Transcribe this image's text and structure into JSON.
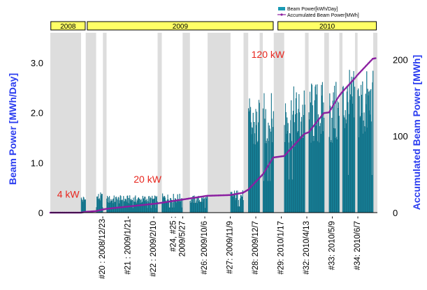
{
  "chart_data": {
    "type": "bar",
    "ylabel": "Beam Power [MWh/Day]",
    "y2label": "Accumulated Beam Power [MWh]",
    "ylim": [
      0,
      3.6
    ],
    "y2lim": [
      0,
      235
    ],
    "yticks": [
      "0",
      "1.0",
      "2.0",
      "3.0"
    ],
    "y2ticks": [
      "0",
      "100",
      "200"
    ],
    "xlim": [
      "2008-10-25",
      "2010-07-15"
    ],
    "years": [
      {
        "label": "2008",
        "start": "2008-10-26",
        "end": "2008-12-31"
      },
      {
        "label": "2009",
        "start": "2009-01-04",
        "end": "2009-12-27"
      },
      {
        "label": "2010",
        "start": "2010-01-05",
        "end": "2010-07-13"
      }
    ],
    "legend": [
      {
        "name": "Beam Power[kWh/Day]",
        "color": "#1a9ab4"
      },
      {
        "name": "Accumulated Beam Power[MWh]",
        "color": "#8b1fa0"
      }
    ],
    "annotations": [
      {
        "text": "4 kW",
        "x": "2008-11-07",
        "y": 0.3
      },
      {
        "text": "20 kW",
        "x": "2009-04-03",
        "y": 0.6
      },
      {
        "text": "120 kW",
        "x": "2009-11-15",
        "y": 3.1
      }
    ],
    "runs": [
      {
        "label": "#20 : 2008/12/23-"
      },
      {
        "label": "#21 : 2009/1/21-"
      },
      {
        "label": "#22 : 2009/2/10 -"
      },
      {
        "label": "#24, #25 :",
        "label2": "2009/5/27 -"
      },
      {
        "label": "#26: 2009/10/6 -"
      },
      {
        "label": "#27: 2009/11/9 -"
      },
      {
        "label": "#28: 2009/12/7 -"
      },
      {
        "label": "#29: 2010/1/17 -"
      },
      {
        "label": "#32: 2010/4/13 -"
      },
      {
        "label": "#33: 2010/5/9 -"
      },
      {
        "label": "#34: 2010/6/7 -"
      }
    ],
    "segments": [
      {
        "start": "2008-12-23",
        "end": "2008-12-31",
        "level": 0.3
      },
      {
        "start": "2009-01-21",
        "end": "2009-02-02",
        "level": 0.35
      },
      {
        "start": "2009-02-10",
        "end": "2009-05-18",
        "level": 0.3
      },
      {
        "start": "2009-05-27",
        "end": "2009-07-05",
        "level": 0.33
      },
      {
        "start": "2009-07-20",
        "end": "2009-08-22",
        "level": 0.3
      },
      {
        "start": "2009-10-06",
        "end": "2009-10-30",
        "level": 0.4
      },
      {
        "start": "2009-11-09",
        "end": "2009-11-30",
        "level": 2.0
      },
      {
        "start": "2009-12-07",
        "end": "2009-12-27",
        "level": 2.1
      },
      {
        "start": "2010-01-17",
        "end": "2010-02-25",
        "level": 2.2
      },
      {
        "start": "2010-03-05",
        "end": "2010-04-03",
        "level": 2.3
      },
      {
        "start": "2010-04-13",
        "end": "2010-05-02",
        "level": 2.3
      },
      {
        "start": "2010-05-09",
        "end": "2010-06-01",
        "level": 2.5
      },
      {
        "start": "2010-06-07",
        "end": "2010-07-06",
        "level": 2.5
      }
    ],
    "accumulated": [
      {
        "date": "2008-10-25",
        "value": 0
      },
      {
        "date": "2008-12-23",
        "value": 0
      },
      {
        "date": "2008-12-31",
        "value": 1
      },
      {
        "date": "2009-01-21",
        "value": 2
      },
      {
        "date": "2009-02-02",
        "value": 4
      },
      {
        "date": "2009-02-10",
        "value": 5
      },
      {
        "date": "2009-05-18",
        "value": 12
      },
      {
        "date": "2009-07-05",
        "value": 17
      },
      {
        "date": "2009-08-22",
        "value": 22
      },
      {
        "date": "2009-10-06",
        "value": 23
      },
      {
        "date": "2009-10-30",
        "value": 26
      },
      {
        "date": "2009-11-09",
        "value": 30
      },
      {
        "date": "2009-11-30",
        "value": 45
      },
      {
        "date": "2009-12-07",
        "value": 50
      },
      {
        "date": "2009-12-27",
        "value": 72
      },
      {
        "date": "2010-01-17",
        "value": 74
      },
      {
        "date": "2010-02-25",
        "value": 103
      },
      {
        "date": "2010-03-05",
        "value": 105
      },
      {
        "date": "2010-04-03",
        "value": 130
      },
      {
        "date": "2010-04-13",
        "value": 131
      },
      {
        "date": "2010-05-02",
        "value": 152
      },
      {
        "date": "2010-05-09",
        "value": 158
      },
      {
        "date": "2010-06-01",
        "value": 175
      },
      {
        "date": "2010-06-07",
        "value": 180
      },
      {
        "date": "2010-07-06",
        "value": 201
      },
      {
        "date": "2010-07-13",
        "value": 202
      }
    ]
  }
}
